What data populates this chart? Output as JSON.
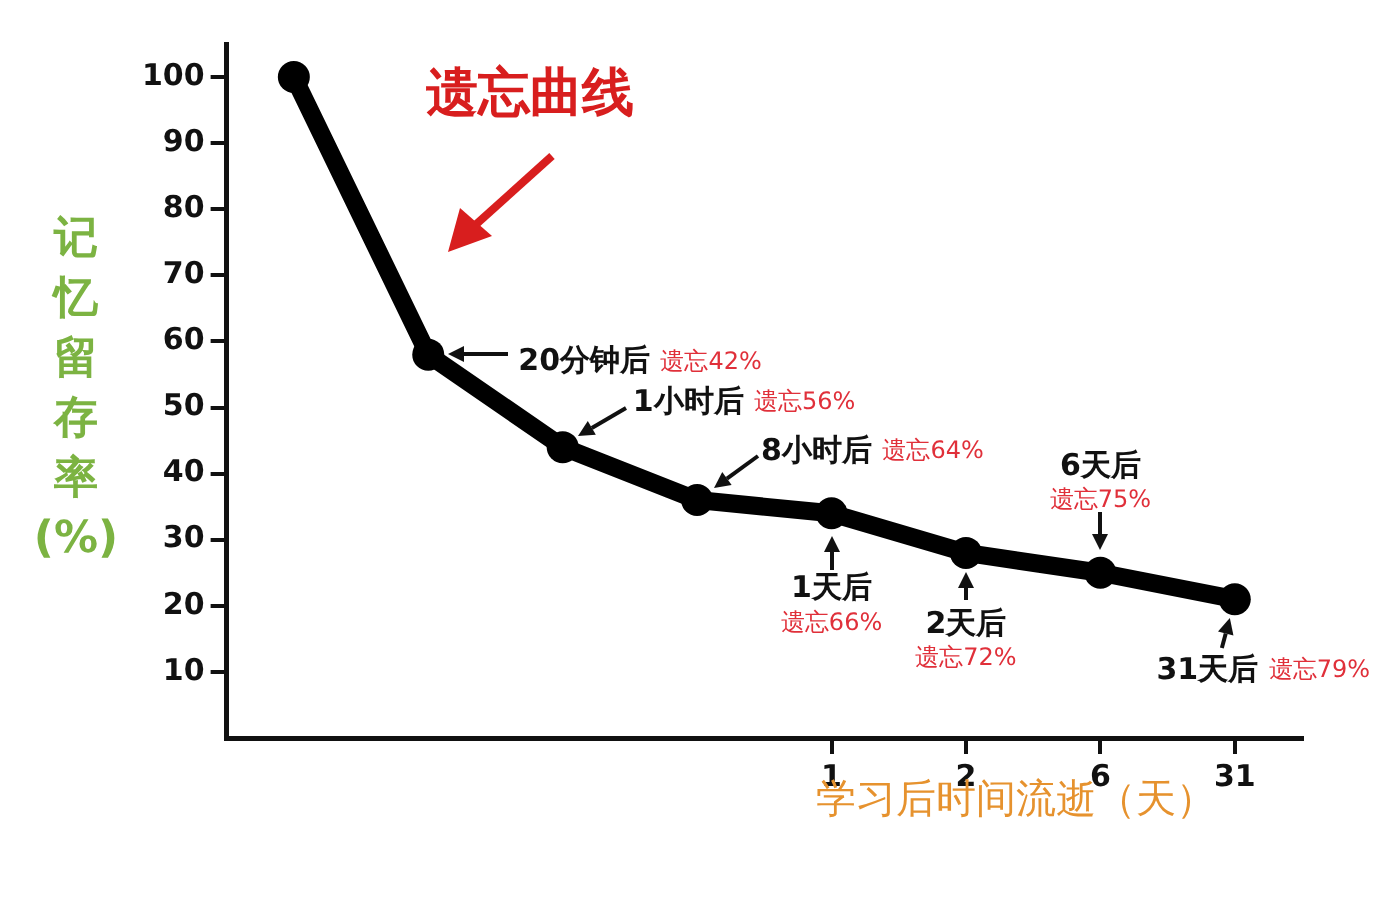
{
  "chart_data": {
    "type": "line",
    "title": "遗忘曲线",
    "ylabel": "记忆留存率(%)",
    "xlabel": "学习后时间流逝（天）",
    "categories": [
      null,
      null,
      null,
      null,
      "1",
      "2",
      "6",
      "31"
    ],
    "values": [
      100,
      58,
      44,
      36,
      34,
      28,
      25,
      21
    ],
    "color": "#000000",
    "ylim": [
      0,
      105
    ],
    "yticks": [
      10,
      20,
      30,
      40,
      50,
      60,
      70,
      80,
      90,
      100
    ],
    "grid": false,
    "legend": false,
    "marker": "circle",
    "line_style": "solid",
    "annotations": [
      "20分钟后",
      "遗忘42%",
      "1小时后",
      "遗忘56%",
      "8小时后",
      "遗忘64%",
      "1天后",
      "遗忘66%",
      "2天后",
      "遗忘72%",
      "6天后",
      "遗忘75%",
      "31天后",
      "遗忘79%"
    ]
  }
}
